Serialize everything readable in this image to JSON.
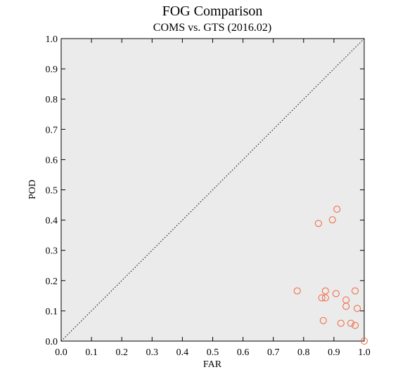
{
  "chart_data": {
    "type": "scatter",
    "title": "FOG Comparison",
    "subtitle": "COMS vs. GTS (2016.02)",
    "xlabel": "FAR",
    "ylabel": "POD",
    "xlim": [
      0.0,
      1.0
    ],
    "ylim": [
      0.0,
      1.0
    ],
    "x_ticks": [
      "0.0",
      "0.1",
      "0.2",
      "0.3",
      "0.4",
      "0.5",
      "0.6",
      "0.7",
      "0.8",
      "0.9",
      "1.0"
    ],
    "y_ticks": [
      "0.0",
      "0.1",
      "0.2",
      "0.3",
      "0.4",
      "0.5",
      "0.6",
      "0.7",
      "0.8",
      "0.9",
      "1.0"
    ],
    "grid": false,
    "reference_line": "diagonal y = x (dotted)",
    "background_color": "#ebebeb",
    "marker_color": "#f0643c",
    "marker": "open circle",
    "points": [
      {
        "x": 0.91,
        "y": 0.436
      },
      {
        "x": 0.849,
        "y": 0.389
      },
      {
        "x": 0.895,
        "y": 0.401
      },
      {
        "x": 0.779,
        "y": 0.166
      },
      {
        "x": 0.872,
        "y": 0.166
      },
      {
        "x": 0.907,
        "y": 0.157
      },
      {
        "x": 0.97,
        "y": 0.166
      },
      {
        "x": 0.86,
        "y": 0.143
      },
      {
        "x": 0.872,
        "y": 0.143
      },
      {
        "x": 0.94,
        "y": 0.136
      },
      {
        "x": 0.94,
        "y": 0.115
      },
      {
        "x": 0.977,
        "y": 0.108
      },
      {
        "x": 0.865,
        "y": 0.068
      },
      {
        "x": 0.923,
        "y": 0.059
      },
      {
        "x": 0.956,
        "y": 0.059
      },
      {
        "x": 0.97,
        "y": 0.052
      },
      {
        "x": 1.0,
        "y": 0.0
      }
    ]
  }
}
